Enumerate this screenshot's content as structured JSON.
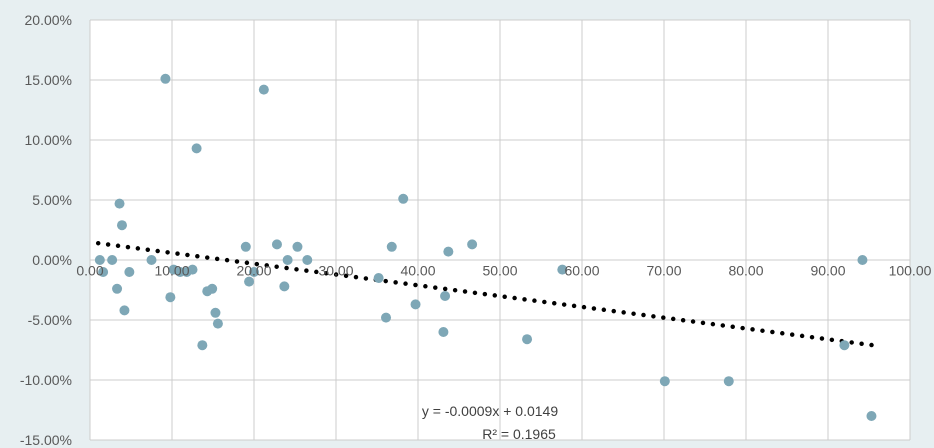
{
  "chart_data": {
    "type": "scatter",
    "xlim": [
      0,
      100
    ],
    "ylim": [
      -0.15,
      0.2
    ],
    "x_ticks": [
      0,
      10,
      20,
      30,
      40,
      50,
      60,
      70,
      80,
      90,
      100
    ],
    "x_tick_labels": [
      "0.00",
      "10.00",
      "20.00",
      "30.00",
      "40.00",
      "50.00",
      "60.00",
      "70.00",
      "80.00",
      "90.00",
      "100.00"
    ],
    "y_ticks": [
      0.2,
      0.15,
      0.1,
      0.05,
      0.0,
      -0.05,
      -0.1,
      -0.15
    ],
    "y_tick_labels": [
      "20.00%",
      "15.00%",
      "10.00%",
      "5.00%",
      "0.00%",
      "-5.00%",
      "-10.00%",
      "-15.00%"
    ],
    "grid": "vertical and horizontal",
    "series": [
      {
        "points": [
          {
            "x": 1.2,
            "y": 0.0
          },
          {
            "x": 1.6,
            "y": -0.01
          },
          {
            "x": 2.7,
            "y": 0.0
          },
          {
            "x": 3.3,
            "y": -0.024
          },
          {
            "x": 3.6,
            "y": 0.047
          },
          {
            "x": 3.9,
            "y": 0.029
          },
          {
            "x": 4.2,
            "y": -0.042
          },
          {
            "x": 4.8,
            "y": -0.01
          },
          {
            "x": 7.5,
            "y": 0.0
          },
          {
            "x": 9.2,
            "y": 0.151
          },
          {
            "x": 9.8,
            "y": -0.031
          },
          {
            "x": 10.2,
            "y": -0.008
          },
          {
            "x": 11.0,
            "y": -0.01
          },
          {
            "x": 11.8,
            "y": -0.01
          },
          {
            "x": 12.5,
            "y": -0.008
          },
          {
            "x": 13.0,
            "y": 0.093
          },
          {
            "x": 13.7,
            "y": -0.071
          },
          {
            "x": 14.3,
            "y": -0.026
          },
          {
            "x": 14.9,
            "y": -0.024
          },
          {
            "x": 15.3,
            "y": -0.044
          },
          {
            "x": 15.6,
            "y": -0.053
          },
          {
            "x": 19.0,
            "y": 0.011
          },
          {
            "x": 19.4,
            "y": -0.018
          },
          {
            "x": 20.0,
            "y": -0.01
          },
          {
            "x": 21.2,
            "y": 0.142
          },
          {
            "x": 22.8,
            "y": 0.013
          },
          {
            "x": 23.7,
            "y": -0.022
          },
          {
            "x": 24.1,
            "y": 0.0
          },
          {
            "x": 25.3,
            "y": 0.011
          },
          {
            "x": 26.5,
            "y": 0.0
          },
          {
            "x": 35.2,
            "y": -0.015
          },
          {
            "x": 36.1,
            "y": -0.048
          },
          {
            "x": 36.8,
            "y": 0.011
          },
          {
            "x": 38.2,
            "y": 0.051
          },
          {
            "x": 39.7,
            "y": -0.037
          },
          {
            "x": 43.1,
            "y": -0.06
          },
          {
            "x": 43.3,
            "y": -0.03
          },
          {
            "x": 43.7,
            "y": 0.007
          },
          {
            "x": 46.6,
            "y": 0.013
          },
          {
            "x": 53.3,
            "y": -0.066
          },
          {
            "x": 57.6,
            "y": -0.008
          },
          {
            "x": 70.1,
            "y": -0.101
          },
          {
            "x": 77.9,
            "y": -0.101
          },
          {
            "x": 92.0,
            "y": -0.071
          },
          {
            "x": 94.2,
            "y": 0.0
          },
          {
            "x": 95.3,
            "y": -0.13
          }
        ],
        "color": "#7ea7b6"
      }
    ],
    "trendline": {
      "slope": -0.0009,
      "intercept": 0.0149,
      "x_range": [
        1,
        95.5
      ],
      "style": "dotted",
      "color": "#000000",
      "equation_label": "y = -0.0009x + 0.0149",
      "r2_label": "R² = 0.1965"
    },
    "colors": {
      "background": "#e7eff1",
      "plot_background": "#ffffff",
      "grid": "#cccccc",
      "tick_text": "#595959"
    }
  }
}
